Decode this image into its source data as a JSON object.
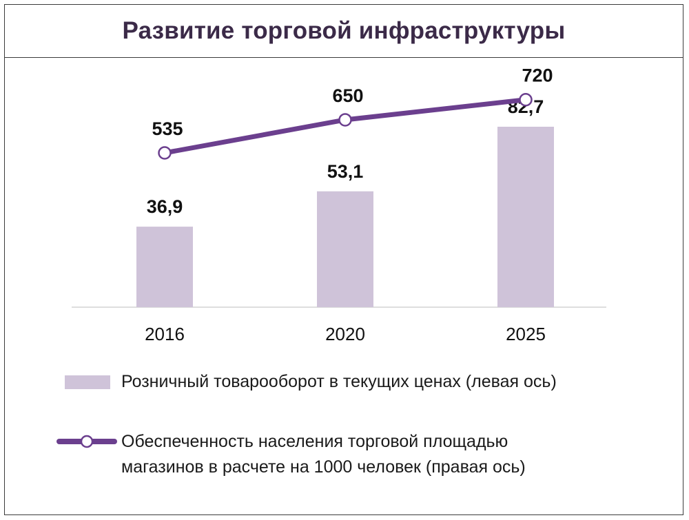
{
  "chart_data": {
    "type": "bar+line",
    "title": "Развитие торговой инфраструктуры",
    "categories": [
      "2016",
      "2020",
      "2025"
    ],
    "series": [
      {
        "name": "Розничный товарооборот в текущих ценах (левая ось)",
        "type": "bar",
        "axis": "left",
        "values": [
          36.9,
          53.1,
          82.7
        ],
        "labels": [
          "36,9",
          "53,1",
          "82,7"
        ],
        "color": "#cfc3d9"
      },
      {
        "name_lines": [
          "Обеспеченность населения торговой площадью",
          "магазинов в расчете на 1000 человек (правая ось)"
        ],
        "type": "line",
        "axis": "right",
        "values": [
          535,
          650,
          720
        ],
        "labels": [
          "535",
          "650",
          "720"
        ],
        "color": "#6b3f8e"
      }
    ],
    "left_axis_range": [
      0,
      100
    ],
    "right_axis_range": [
      0,
      800
    ],
    "grid": false,
    "legend_placement": "bottom"
  }
}
